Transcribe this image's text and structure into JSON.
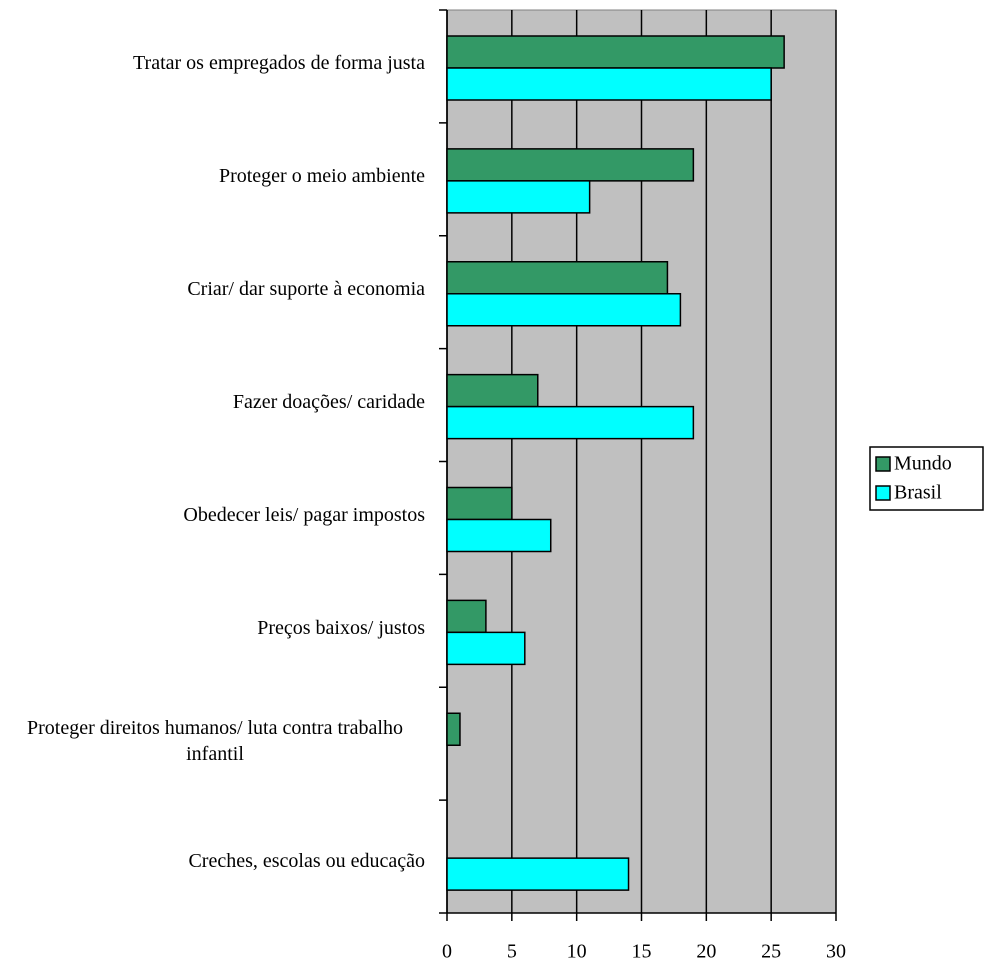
{
  "chart_data": {
    "type": "bar",
    "orientation": "horizontal",
    "categories": [
      "Tratar os empregados de forma justa",
      "Proteger o meio ambiente",
      "Criar/ dar suporte à economia",
      "Fazer doações/ caridade",
      "Obedecer leis/ pagar impostos",
      "Preços baixos/ justos",
      "Proteger direitos humanos/ luta contra trabalho infantil",
      "Creches, escolas ou educação"
    ],
    "series": [
      {
        "name": "Mundo",
        "color": "#339966",
        "values": [
          26,
          19,
          17,
          7,
          5,
          3,
          1,
          null
        ]
      },
      {
        "name": "Brasil",
        "color": "#00ffff",
        "values": [
          25,
          11,
          18,
          19,
          8,
          6,
          null,
          14
        ]
      }
    ],
    "xlim": [
      0,
      30
    ],
    "xticks": [
      0,
      5,
      10,
      15,
      20,
      25,
      30
    ],
    "grid": true,
    "legend": "right"
  }
}
